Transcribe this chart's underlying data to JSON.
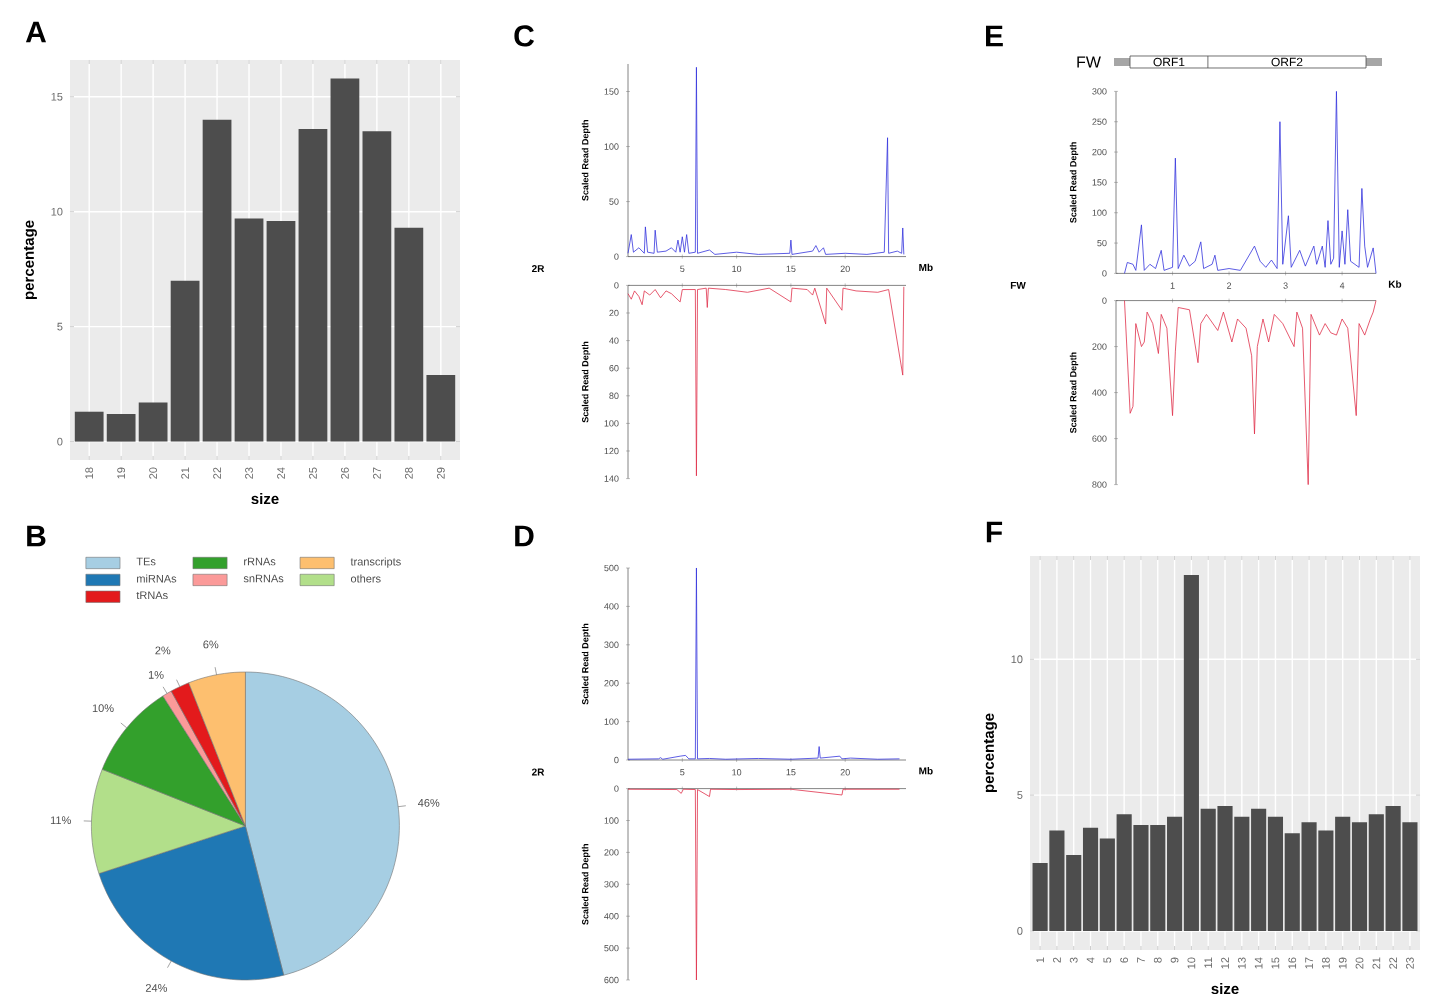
{
  "chart_data": [
    {
      "type": "bar",
      "title": "A",
      "xlabel": "size",
      "ylabel": "percentage",
      "categories": [
        "18",
        "19",
        "20",
        "21",
        "22",
        "23",
        "24",
        "25",
        "26",
        "27",
        "28",
        "29"
      ],
      "values": [
        1.3,
        1.2,
        1.7,
        7.0,
        14.0,
        9.7,
        9.6,
        13.6,
        15.8,
        13.5,
        9.3,
        2.9
      ],
      "color": "#4d4d4d",
      "ylim": [
        -0.8,
        16.6
      ],
      "yticks": [
        0,
        5,
        10,
        15
      ],
      "grid": true
    },
    {
      "type": "pie",
      "title": "B",
      "categories": [
        "TEs",
        "miRNAs",
        "others",
        "rRNAs",
        "snRNAs",
        "tRNAs",
        "transcripts"
      ],
      "values": [
        46,
        24,
        11,
        10,
        1,
        2,
        6
      ],
      "colors": [
        "#a6cee3",
        "#1f78b4",
        "#b2df8a",
        "#33a02c",
        "#fb9a99",
        "#e31a1c",
        "#fdbf6f"
      ],
      "value_labels": [
        "46%",
        "24%",
        "11%",
        "10%",
        "1%",
        "2%",
        "6%"
      ],
      "legend": "top"
    },
    {
      "type": "line",
      "title": "C",
      "xlabel": "Mb",
      "ylabel": "Scaled Read Depth",
      "annotations": [
        "2R"
      ],
      "color": "#3333dd",
      "xlim": [
        0,
        25.6
      ],
      "ylim": [
        0,
        175
      ],
      "xticks": [
        5,
        10,
        15,
        20
      ],
      "yticks": [
        0,
        50,
        100,
        150
      ],
      "x": [
        0,
        0.3,
        0.5,
        1.0,
        1.5,
        1.6,
        1.8,
        2.4,
        2.5,
        2.7,
        3.5,
        4.0,
        4.4,
        4.6,
        4.8,
        5.0,
        5.2,
        5.4,
        5.6,
        6.2,
        6.3,
        6.4,
        7.5,
        8.0,
        10.0,
        12.0,
        14.9,
        15.0,
        15.1,
        17.0,
        17.3,
        17.6,
        18.0,
        18.2,
        20.0,
        22.0,
        23.6,
        23.9,
        24.0,
        24.8,
        25.2,
        25.3,
        25.4
      ],
      "values": [
        3,
        20,
        4,
        8,
        3,
        27,
        4,
        3,
        24,
        4,
        5,
        8,
        4,
        15,
        4,
        18,
        4,
        20,
        3,
        4,
        172,
        3,
        6,
        2,
        4,
        2,
        3,
        15,
        2,
        5,
        10,
        4,
        8,
        2,
        3,
        2,
        4,
        108,
        3,
        5,
        3,
        26,
        2
      ]
    },
    {
      "type": "line",
      "ylabel": "Scaled Read Depth",
      "color": "#e0304a",
      "xlim": [
        0,
        25.6
      ],
      "ylim": [
        140,
        0
      ],
      "xticks": [
        5,
        10,
        15,
        20
      ],
      "yticks": [
        0,
        20,
        40,
        60,
        80,
        100,
        120,
        140
      ],
      "tick_labels": "y",
      "x": [
        0,
        0.3,
        0.6,
        1.0,
        1.3,
        1.5,
        2.0,
        2.5,
        3.0,
        3.5,
        4.0,
        4.8,
        5.0,
        6.2,
        6.3,
        6.4,
        7.2,
        7.3,
        7.4,
        9.0,
        11.0,
        13.0,
        15.0,
        15.1,
        16.5,
        17.0,
        17.2,
        18.2,
        18.3,
        19.7,
        19.8,
        21.0,
        23.0,
        24.0,
        25.3,
        25.4
      ],
      "values": [
        6,
        10,
        4,
        8,
        14,
        4,
        7,
        3,
        9,
        4,
        6,
        12,
        3,
        3,
        138,
        3,
        2,
        16,
        2,
        3,
        5,
        2,
        12,
        2,
        3,
        7,
        2,
        28,
        2,
        18,
        2,
        4,
        5,
        3,
        65,
        1
      ]
    },
    {
      "type": "line",
      "title": "D",
      "xlabel": "Mb",
      "ylabel": "Scaled Read Depth",
      "annotations": [
        "2R"
      ],
      "color": "#3333dd",
      "xlim": [
        0,
        25.6
      ],
      "ylim": [
        0,
        500
      ],
      "xticks": [
        5,
        10,
        15,
        20
      ],
      "yticks": [
        0,
        100,
        200,
        300,
        400,
        500
      ],
      "x": [
        0,
        2.8,
        3.0,
        3.2,
        4.8,
        5.3,
        5.6,
        6.2,
        6.3,
        6.4,
        7.5,
        9.0,
        12.0,
        15.0,
        17.5,
        17.6,
        17.7,
        19.5,
        19.7,
        20.5,
        23.0,
        25.0
      ],
      "values": [
        2,
        3,
        6,
        2,
        10,
        12,
        3,
        3,
        500,
        3,
        4,
        2,
        4,
        2,
        5,
        35,
        5,
        10,
        3,
        5,
        2,
        3
      ]
    },
    {
      "type": "line",
      "ylabel": "Scaled Read Depth",
      "color": "#e0304a",
      "xlim": [
        0,
        25.6
      ],
      "ylim": [
        600,
        0
      ],
      "xticks": [
        5,
        10,
        15,
        20
      ],
      "yticks": [
        0,
        100,
        200,
        300,
        400,
        500,
        600
      ],
      "tick_labels": "y",
      "x": [
        0,
        4.5,
        4.9,
        5.1,
        6.2,
        6.3,
        6.4,
        7.5,
        7.6,
        10.0,
        15.0,
        19.7,
        19.8,
        25.0
      ],
      "values": [
        2,
        3,
        15,
        2,
        3,
        600,
        3,
        25,
        2,
        3,
        2,
        20,
        2,
        2
      ]
    },
    {
      "type": "line",
      "title": "E",
      "xlabel": "Kb",
      "ylabel": "Scaled Read Depth",
      "annotations": [
        "FW",
        "FW",
        "ORF1",
        "ORF2"
      ],
      "color": "#3333dd",
      "xlim": [
        0,
        4.6
      ],
      "ylim": [
        0,
        300
      ],
      "xticks": [
        1,
        2,
        3,
        4
      ],
      "yticks": [
        0,
        50,
        100,
        150,
        200,
        250,
        300
      ],
      "x": [
        0.15,
        0.2,
        0.3,
        0.35,
        0.45,
        0.5,
        0.6,
        0.7,
        0.8,
        0.85,
        1.0,
        1.05,
        1.1,
        1.2,
        1.3,
        1.4,
        1.5,
        1.55,
        1.7,
        1.75,
        1.8,
        2.0,
        2.2,
        2.45,
        2.55,
        2.65,
        2.75,
        2.85,
        2.9,
        2.95,
        3.05,
        3.1,
        3.25,
        3.35,
        3.5,
        3.55,
        3.65,
        3.7,
        3.75,
        3.8,
        3.85,
        3.9,
        3.95,
        4.0,
        4.05,
        4.1,
        4.15,
        4.3,
        4.35,
        4.4,
        4.45,
        4.55,
        4.6
      ],
      "values": [
        0,
        18,
        15,
        5,
        80,
        5,
        15,
        8,
        38,
        5,
        10,
        190,
        8,
        30,
        12,
        20,
        52,
        8,
        15,
        30,
        5,
        8,
        5,
        45,
        20,
        10,
        22,
        8,
        250,
        15,
        95,
        10,
        38,
        12,
        45,
        15,
        45,
        10,
        87,
        15,
        25,
        300,
        10,
        70,
        15,
        105,
        20,
        10,
        140,
        45,
        10,
        42,
        0
      ]
    },
    {
      "type": "line",
      "ylabel": "Scaled Read Depth",
      "color": "#e0304a",
      "xlim": [
        0,
        4.6
      ],
      "ylim": [
        800,
        0
      ],
      "xticks": [
        1,
        2,
        3,
        4
      ],
      "yticks": [
        0,
        200,
        400,
        600,
        800
      ],
      "tick_labels": "y",
      "x": [
        0.15,
        0.25,
        0.3,
        0.35,
        0.45,
        0.5,
        0.55,
        0.65,
        0.75,
        0.8,
        0.9,
        1.0,
        1.05,
        1.1,
        1.3,
        1.45,
        1.5,
        1.6,
        1.8,
        1.9,
        2.05,
        2.15,
        2.3,
        2.4,
        2.45,
        2.5,
        2.6,
        2.7,
        2.8,
        2.95,
        3.15,
        3.2,
        3.3,
        3.4,
        3.45,
        3.6,
        3.7,
        3.8,
        3.9,
        4.0,
        4.1,
        4.25,
        4.3,
        4.4,
        4.5,
        4.55,
        4.6
      ],
      "values": [
        0,
        490,
        460,
        100,
        200,
        180,
        50,
        100,
        230,
        60,
        120,
        500,
        220,
        30,
        40,
        270,
        100,
        60,
        130,
        50,
        180,
        80,
        120,
        240,
        580,
        200,
        80,
        180,
        60,
        100,
        200,
        50,
        120,
        800,
        60,
        150,
        100,
        140,
        150,
        80,
        120,
        500,
        100,
        150,
        80,
        50,
        0
      ]
    },
    {
      "type": "bar",
      "title": "F",
      "xlabel": "size",
      "ylabel": "percentage",
      "categories": [
        "1",
        "2",
        "3",
        "4",
        "5",
        "6",
        "7",
        "8",
        "9",
        "10",
        "11",
        "12",
        "13",
        "14",
        "15",
        "16",
        "17",
        "18",
        "19",
        "20",
        "21",
        "22",
        "23"
      ],
      "values": [
        2.5,
        3.7,
        2.8,
        3.8,
        3.4,
        4.3,
        3.9,
        3.9,
        4.2,
        13.1,
        4.5,
        4.6,
        4.2,
        4.5,
        4.2,
        3.6,
        4.0,
        3.7,
        4.2,
        4.0,
        4.3,
        4.6,
        4.0
      ],
      "color": "#4d4d4d",
      "ylim": [
        -0.7,
        13.8
      ],
      "yticks": [
        0,
        5,
        10
      ],
      "grid": true
    }
  ]
}
